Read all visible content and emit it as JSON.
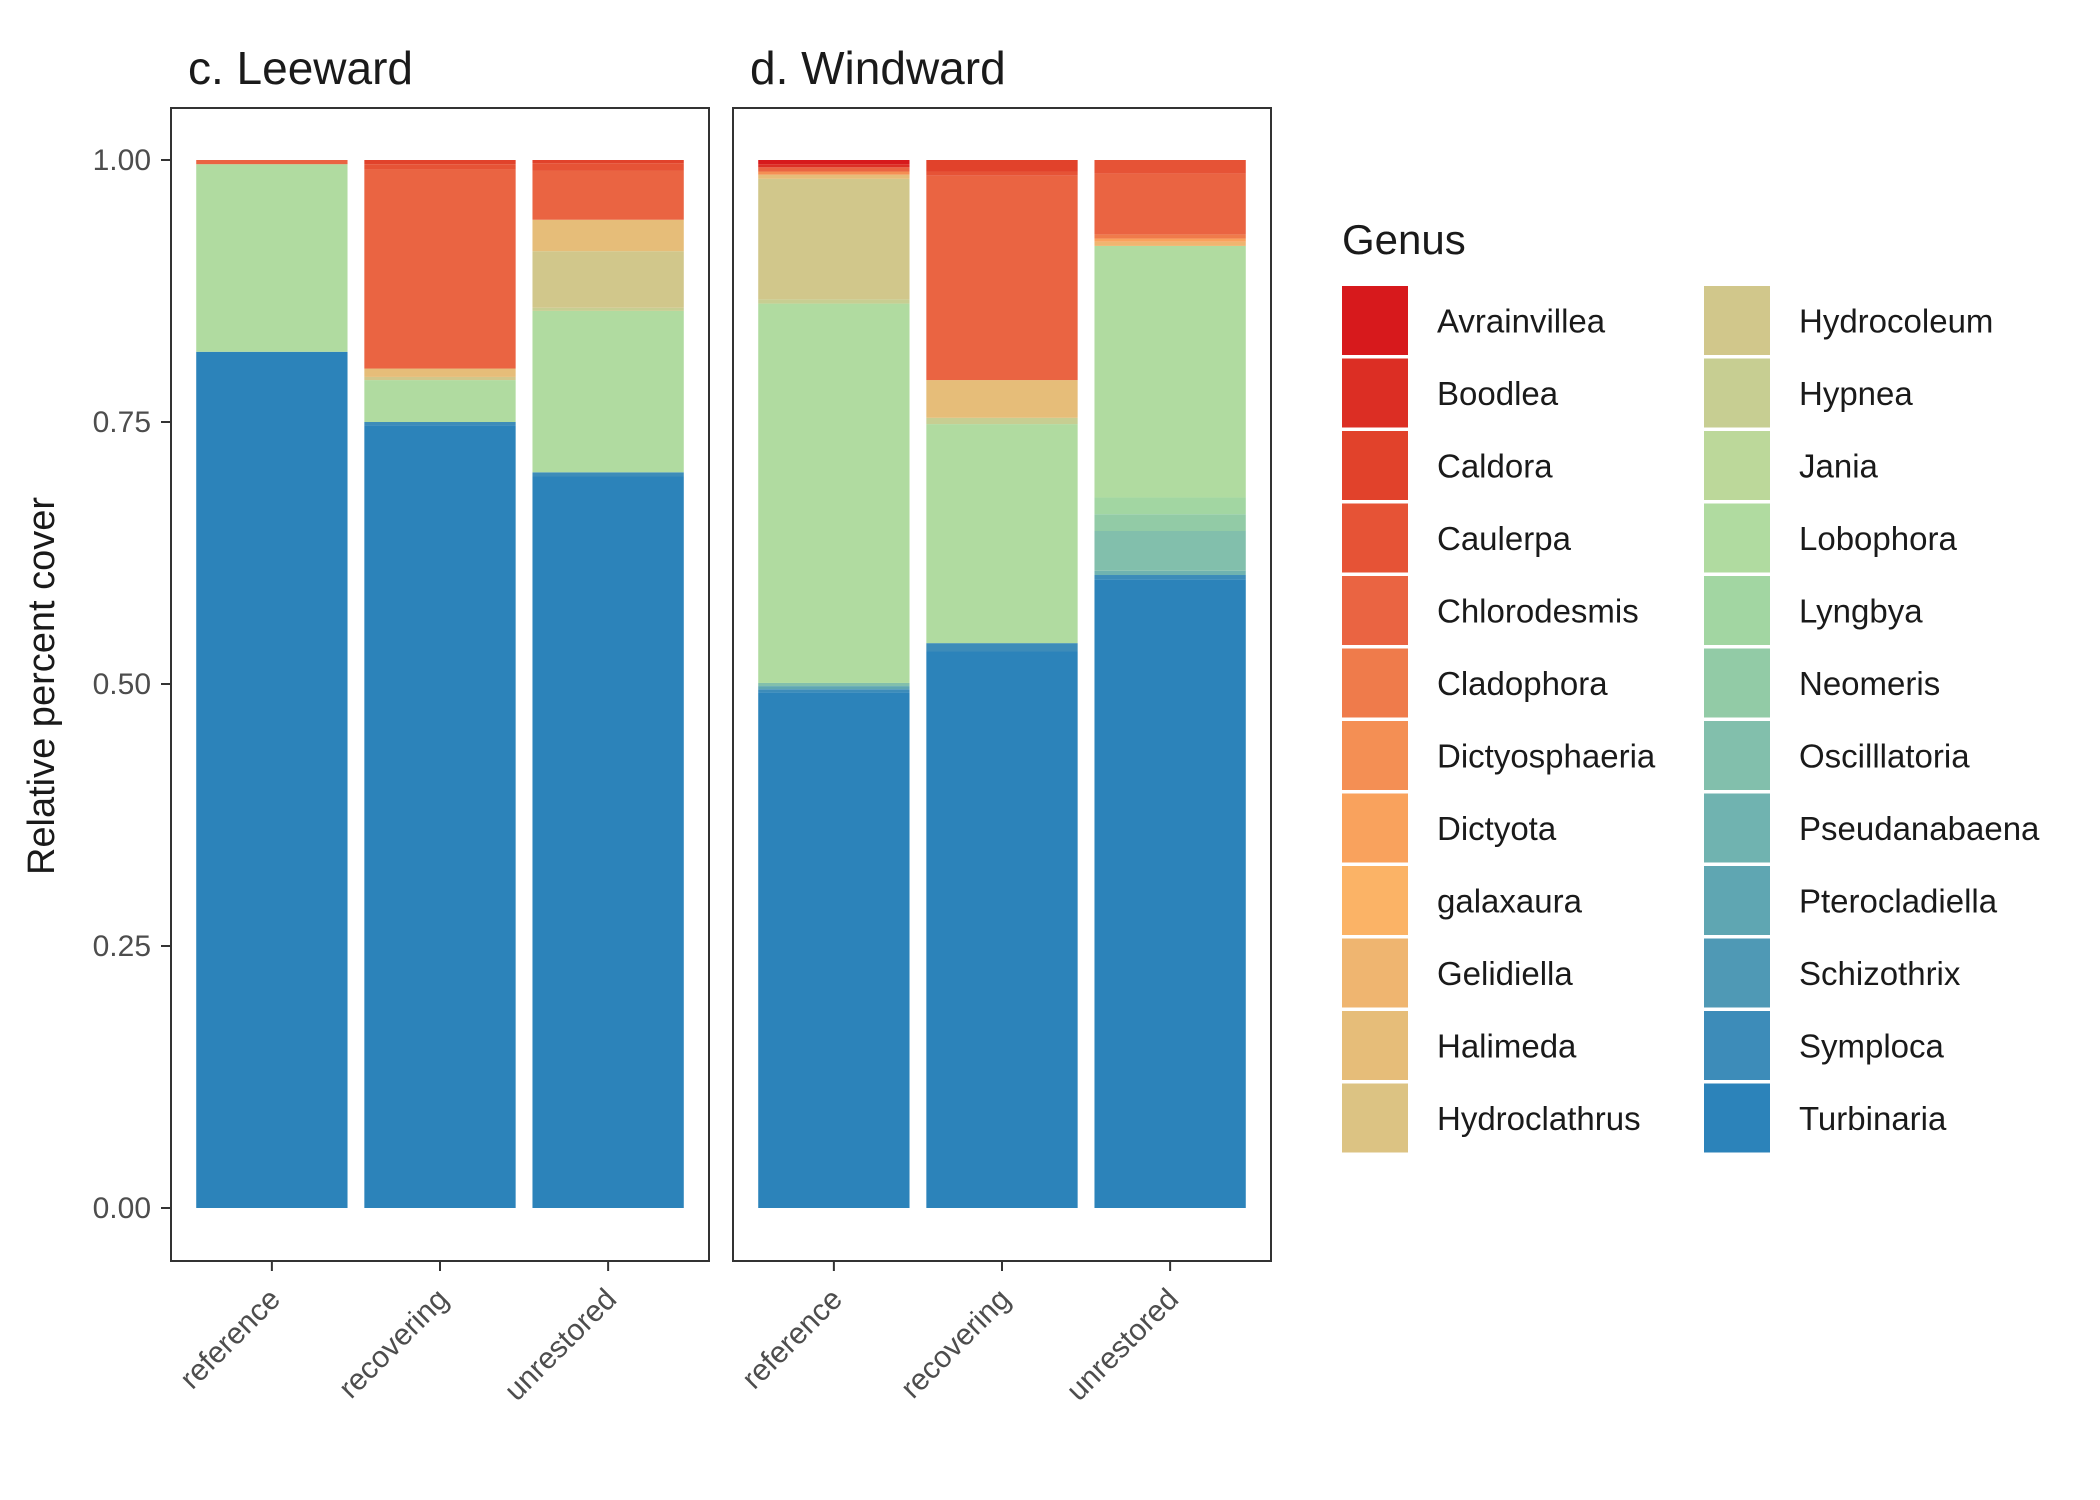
{
  "chart_data": {
    "type": "bar",
    "stacked": true,
    "ylabel": "Relative percent cover",
    "ylim": [
      0,
      1
    ],
    "yticks": [
      "0.00",
      "0.25",
      "0.50",
      "0.75",
      "1.00"
    ],
    "categories": [
      "reference",
      "recovering",
      "unrestored"
    ],
    "legend": {
      "title": "Genus",
      "position": "right",
      "columns": 2
    },
    "genera": [
      {
        "name": "Avrainvillea",
        "color": "#d7191c"
      },
      {
        "name": "Boodlea",
        "color": "#dc2e24"
      },
      {
        "name": "Caldora",
        "color": "#e1422b"
      },
      {
        "name": "Caulerpa",
        "color": "#e65336"
      },
      {
        "name": "Chlorodesmis",
        "color": "#ea6442"
      },
      {
        "name": "Cladophora",
        "color": "#ef7b4b"
      },
      {
        "name": "Dictyosphaeria",
        "color": "#f48f54"
      },
      {
        "name": "Dictyota",
        "color": "#f9a25d"
      },
      {
        "name": "galaxaura",
        "color": "#fbb366"
      },
      {
        "name": "Gelidiella",
        "color": "#efb570"
      },
      {
        "name": "Halimeda",
        "color": "#e6bd79"
      },
      {
        "name": "Hydroclathrus",
        "color": "#dcc383"
      },
      {
        "name": "Hydrocoleum",
        "color": "#d1c78b"
      },
      {
        "name": "Hypnea",
        "color": "#c7ce92"
      },
      {
        "name": "Jania",
        "color": "#bcd89a"
      },
      {
        "name": "Lobophora",
        "color": "#b0dba0"
      },
      {
        "name": "Lyngbya",
        "color": "#a2d6a2"
      },
      {
        "name": "Neomeris",
        "color": "#92cba6"
      },
      {
        "name": "Oscilllatoria",
        "color": "#82bfac"
      },
      {
        "name": "Pseudanabaena",
        "color": "#70b3b0"
      },
      {
        "name": "Pterocladiella",
        "color": "#5fa6b2"
      },
      {
        "name": "Schizothrix",
        "color": "#4f99b5"
      },
      {
        "name": "Symploca",
        "color": "#3d8cb9"
      },
      {
        "name": "Turbinaria",
        "color": "#2c83ba"
      }
    ],
    "panels": [
      {
        "title": "c. Leeward",
        "bars": [
          {
            "category": "reference",
            "segments": [
              {
                "genus": "Turbinaria",
                "value": 0.817
              },
              {
                "genus": "Lobophora",
                "value": 0.179
              },
              {
                "genus": "Chlorodesmis",
                "value": 0.004
              }
            ]
          },
          {
            "category": "recovering",
            "segments": [
              {
                "genus": "Turbinaria",
                "value": 0.747
              },
              {
                "genus": "Symploca",
                "value": 0.003
              },
              {
                "genus": "Lobophora",
                "value": 0.04
              },
              {
                "genus": "Hydrocoleum",
                "value": 0.003
              },
              {
                "genus": "Halimeda",
                "value": 0.008
              },
              {
                "genus": "Chlorodesmis",
                "value": 0.19
              },
              {
                "genus": "Caulerpa",
                "value": 0.005
              },
              {
                "genus": "Caldora",
                "value": 0.004
              }
            ]
          },
          {
            "category": "unrestored",
            "segments": [
              {
                "genus": "Turbinaria",
                "value": 0.698
              },
              {
                "genus": "Symploca",
                "value": 0.004
              },
              {
                "genus": "Lobophora",
                "value": 0.154
              },
              {
                "genus": "Hypnea",
                "value": 0.003
              },
              {
                "genus": "Hydrocoleum",
                "value": 0.054
              },
              {
                "genus": "Halimeda",
                "value": 0.03
              },
              {
                "genus": "Chlorodesmis",
                "value": 0.047
              },
              {
                "genus": "Caulerpa",
                "value": 0.007
              },
              {
                "genus": "Caldora",
                "value": 0.003
              }
            ]
          }
        ]
      },
      {
        "title": "d. Windward",
        "bars": [
          {
            "category": "reference",
            "segments": [
              {
                "genus": "Turbinaria",
                "value": 0.492
              },
              {
                "genus": "Symploca",
                "value": 0.003
              },
              {
                "genus": "Pterocladiella",
                "value": 0.003
              },
              {
                "genus": "Oscilllatoria",
                "value": 0.003
              },
              {
                "genus": "Lobophora",
                "value": 0.362
              },
              {
                "genus": "Hypnea",
                "value": 0.004
              },
              {
                "genus": "Hydrocoleum",
                "value": 0.115
              },
              {
                "genus": "Halimeda",
                "value": 0.004
              },
              {
                "genus": "Dictyosphaeria",
                "value": 0.003
              },
              {
                "genus": "Chlorodesmis",
                "value": 0.004
              },
              {
                "genus": "Boodlea",
                "value": 0.003
              },
              {
                "genus": "Avrainvillea",
                "value": 0.004
              }
            ]
          },
          {
            "category": "recovering",
            "segments": [
              {
                "genus": "Turbinaria",
                "value": 0.531
              },
              {
                "genus": "Symploca",
                "value": 0.008
              },
              {
                "genus": "Lobophora",
                "value": 0.209
              },
              {
                "genus": "Hypnea",
                "value": 0.006
              },
              {
                "genus": "Halimeda",
                "value": 0.036
              },
              {
                "genus": "Chlorodesmis",
                "value": 0.195
              },
              {
                "genus": "Caulerpa",
                "value": 0.004
              },
              {
                "genus": "Caldora",
                "value": 0.011
              }
            ]
          },
          {
            "category": "unrestored",
            "segments": [
              {
                "genus": "Turbinaria",
                "value": 0.6
              },
              {
                "genus": "Symploca",
                "value": 0.004
              },
              {
                "genus": "Pseudanabaena",
                "value": 0.004
              },
              {
                "genus": "Oscilllatoria",
                "value": 0.038
              },
              {
                "genus": "Neomeris",
                "value": 0.016
              },
              {
                "genus": "Lyngbya",
                "value": 0.016
              },
              {
                "genus": "Lobophora",
                "value": 0.24
              },
              {
                "genus": "Gelidiella",
                "value": 0.004
              },
              {
                "genus": "Dictyota",
                "value": 0.003
              },
              {
                "genus": "Cladophora",
                "value": 0.004
              },
              {
                "genus": "Chlorodesmis",
                "value": 0.058
              },
              {
                "genus": "Caulerpa",
                "value": 0.013
              }
            ]
          }
        ]
      }
    ]
  }
}
